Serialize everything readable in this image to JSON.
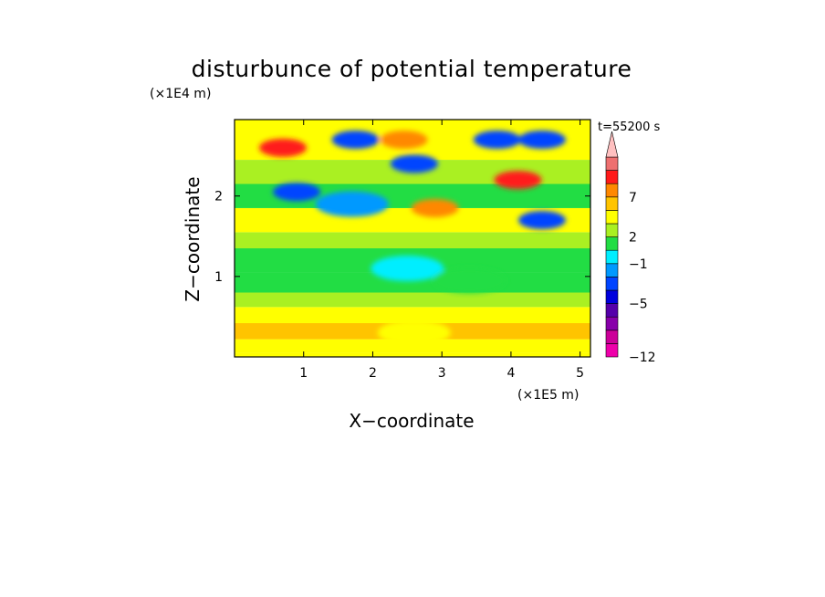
{
  "chart_data": {
    "type": "heatmap",
    "title": "disturbunce of potential temperature",
    "time_label": "t=55200 s",
    "xlabel": "X−coordinate",
    "ylabel": "Z−coordinate",
    "x_unit": "(×1E5 m)",
    "y_unit": "(×1E4 m)",
    "xlim": [
      0,
      5.15
    ],
    "ylim": [
      0,
      2.95
    ],
    "x_ticks": [
      1,
      2,
      3,
      4,
      5
    ],
    "y_ticks": [
      1,
      2
    ],
    "grid": false,
    "colorbar": {
      "levels": [
        -12,
        -10,
        -8,
        -6,
        -5,
        -4,
        -2,
        -1,
        1,
        2,
        3,
        5,
        7,
        9,
        11
      ],
      "labeled_levels": [
        -12,
        -5,
        -1,
        2,
        7
      ],
      "colors": [
        "#ee00aa",
        "#cc0099",
        "#8800aa",
        "#5500aa",
        "#0000dd",
        "#0044ff",
        "#0099ff",
        "#00eeff",
        "#22dd44",
        "#aaf022",
        "#ffff00",
        "#ffc400",
        "#ff8800",
        "#ff1a1a",
        "#ee7070",
        "#ffc0c0"
      ],
      "extend": "max"
    },
    "features": [
      {
        "x": 0.9,
        "z": 2.05,
        "value": -5
      },
      {
        "x": 1.7,
        "z": 1.9,
        "value": -4
      },
      {
        "x": 1.75,
        "z": 2.7,
        "value": -5
      },
      {
        "x": 2.6,
        "z": 2.4,
        "value": -5
      },
      {
        "x": 3.8,
        "z": 2.7,
        "value": -5
      },
      {
        "x": 4.45,
        "z": 2.7,
        "value": -5
      },
      {
        "x": 4.45,
        "z": 1.7,
        "value": -5
      },
      {
        "x": 0.7,
        "z": 2.6,
        "value": 7
      },
      {
        "x": 2.45,
        "z": 2.7,
        "value": 5
      },
      {
        "x": 4.1,
        "z": 2.2,
        "value": 7
      },
      {
        "x": 2.9,
        "z": 1.85,
        "value": 5
      },
      {
        "x": 2.5,
        "z": 1.1,
        "value": -2
      },
      {
        "x": 3.4,
        "z": 0.95,
        "value": -1
      },
      {
        "x": 2.6,
        "z": 0.3,
        "value": 2
      }
    ]
  }
}
